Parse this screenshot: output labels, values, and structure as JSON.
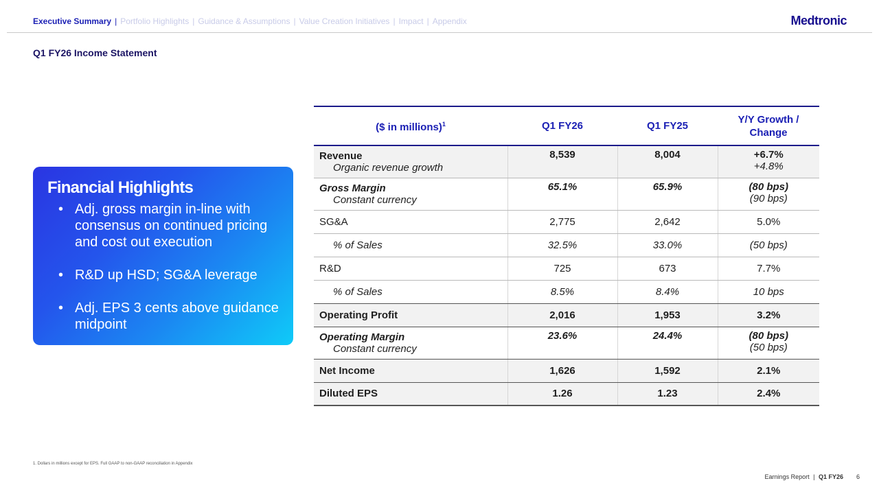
{
  "nav": {
    "items": [
      "Executive Summary",
      "Portfolio Highlights",
      "Guidance & Assumptions",
      "Value Creation Initiatives",
      "Impact",
      "Appendix"
    ],
    "separator": "|"
  },
  "brand": {
    "logo": "Medtronic"
  },
  "page": {
    "title": "Q1 FY26 Income Statement"
  },
  "highlights": {
    "title": "Financial Highlights",
    "bullet_char": "•",
    "bullets": [
      "Adj. gross margin in-line with consensus on continued pricing and cost out execution",
      "R&D up HSD; SG&A leverage",
      "Adj. EPS 3 cents above guidance midpoint"
    ]
  },
  "table": {
    "headers": [
      "($ in millions)",
      "Q1 FY26",
      "Q1 FY25",
      "Y/Y Growth / Change"
    ],
    "header_note": "1",
    "rows": [
      {
        "label": "Revenue",
        "sub": "Organic revenue growth",
        "v1": "8,539",
        "v2": "8,004",
        "v3": "+6.7%",
        "v3sub": "+4.8%"
      },
      {
        "label": "Gross Margin",
        "sub": "Constant currency",
        "v1": "65.1%",
        "v2": "65.9%",
        "v3": "(80 bps)",
        "v3sub": "(90 bps)"
      },
      {
        "label": "SG&A",
        "v1": "2,775",
        "v2": "2,642",
        "v3": "5.0%"
      },
      {
        "label": "% of Sales",
        "v1": "32.5%",
        "v2": "33.0%",
        "v3": "(50 bps)"
      },
      {
        "label": "R&D",
        "v1": "725",
        "v2": "673",
        "v3": "7.7%"
      },
      {
        "label": "% of Sales",
        "v1": "8.5%",
        "v2": "8.4%",
        "v3": "10 bps"
      },
      {
        "label": "Operating Profit",
        "v1": "2,016",
        "v2": "1,953",
        "v3": "3.2%"
      },
      {
        "label": "Operating Margin",
        "sub": "Constant currency",
        "v1": "23.6%",
        "v2": "24.4%",
        "v3": "(80 bps)",
        "v3sub": "(50 bps)"
      },
      {
        "label": "Net Income",
        "v1": "1,626",
        "v2": "1,592",
        "v3": "2.1%"
      },
      {
        "label": "Diluted EPS",
        "v1": "1.26",
        "v2": "1.23",
        "v3": "2.4%"
      }
    ]
  },
  "footnote": "1. Dollars in millions except for EPS. Full GAAP to non-GAAP reconciliation in Appendix",
  "footer": {
    "report": "Earnings Report",
    "separator": "|",
    "period": "Q1 FY26",
    "page_number": "6"
  },
  "colors": {
    "nav_active": "#1a1fb4",
    "brand": "#170f8f",
    "card_gradient_start": "#2a35e2",
    "card_gradient_end": "#0fcbf8",
    "row_highlight": "#f2f2f2"
  }
}
